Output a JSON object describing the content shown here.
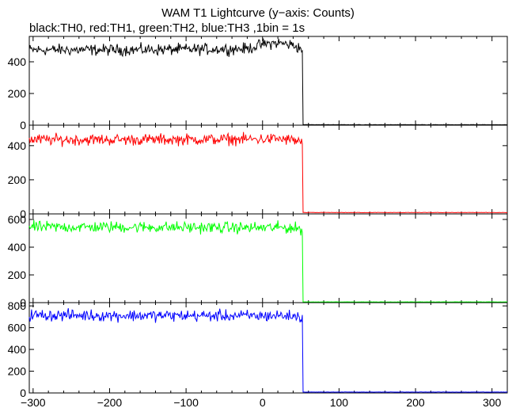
{
  "chart_data": {
    "type": "line",
    "title": "WAM T1 Lightcurve (y−axis: Counts)",
    "subtitle": "black:TH0, red:TH1, green:TH2, blue:TH3 ,1bin = 1s",
    "xlim": [
      -305,
      320
    ],
    "x_ticks": [
      -300,
      -200,
      -100,
      0,
      100,
      200,
      300
    ],
    "x_tick_labels": [
      "−300",
      "−200",
      "−100",
      "0",
      "100",
      "200",
      "300"
    ],
    "grid": false,
    "panels": [
      {
        "channel": "TH0",
        "color": "#000000",
        "ylim": [
          0,
          560
        ],
        "y_ticks": [
          0,
          200,
          400
        ],
        "segments": [
          {
            "x": [
              -305,
              -200,
              -100,
              -20,
              0,
              20,
              40,
              52
            ],
            "y": [
              475,
              475,
              478,
              482,
              510,
              520,
              505,
              480
            ]
          },
          {
            "x": [
              53,
              320
            ],
            "y": [
              3,
              3
            ]
          }
        ]
      },
      {
        "channel": "TH1",
        "color": "#ff0000",
        "ylim": [
          0,
          520
        ],
        "y_ticks": [
          0,
          200,
          400
        ],
        "segments": [
          {
            "x": [
              -305,
              -200,
              -100,
              0,
              20,
              40,
              52
            ],
            "y": [
              435,
              435,
              436,
              438,
              440,
              432,
              420
            ]
          },
          {
            "x": [
              53,
              320
            ],
            "y": [
              8,
              8
            ]
          }
        ]
      },
      {
        "channel": "TH2",
        "color": "#00ff00",
        "ylim": [
          0,
          640
        ],
        "y_ticks": [
          0,
          200,
          400,
          600
        ],
        "segments": [
          {
            "x": [
              -305,
              -200,
              -100,
              0,
              20,
              40,
              52
            ],
            "y": [
              545,
              545,
              543,
              540,
              542,
              538,
              530
            ]
          },
          {
            "x": [
              53,
              320
            ],
            "y": [
              5,
              5
            ]
          }
        ]
      },
      {
        "channel": "TH3",
        "color": "#0000ff",
        "ylim": [
          0,
          830
        ],
        "y_ticks": [
          0,
          200,
          400,
          600,
          800
        ],
        "segments": [
          {
            "x": [
              -305,
              -200,
              -100,
              0,
              20,
              40,
              52
            ],
            "y": [
              715,
              712,
              710,
              708,
              712,
              705,
              695
            ]
          },
          {
            "x": [
              53,
              320
            ],
            "y": [
              8,
              8
            ]
          }
        ]
      }
    ]
  }
}
